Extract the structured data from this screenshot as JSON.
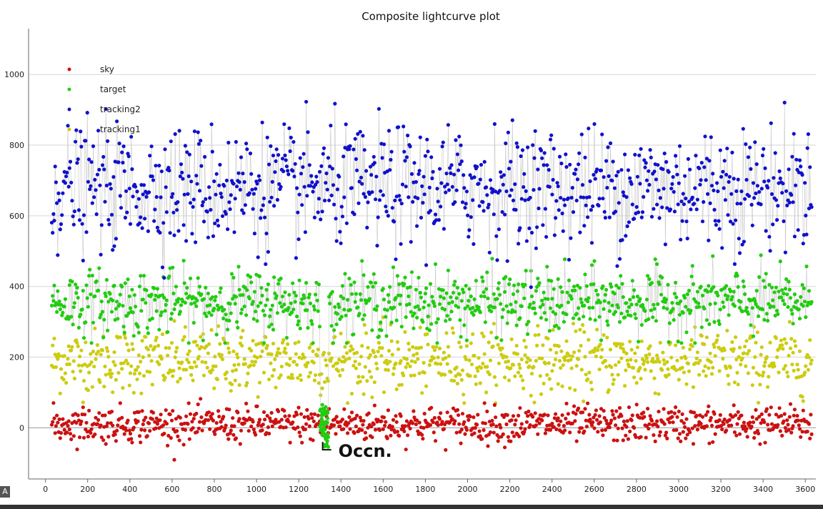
{
  "chart_data": {
    "type": "scatter",
    "title": "Composite lightcurve plot",
    "xlabel": "",
    "ylabel": "",
    "xlim": [
      -80,
      3650
    ],
    "ylim": [
      -145,
      1130
    ],
    "x_ticks": [
      "0",
      "200",
      "400",
      "600",
      "800",
      "1000",
      "1200",
      "1400",
      "1600",
      "1800",
      "2000",
      "2200",
      "2400",
      "2600",
      "2800",
      "3000",
      "3200",
      "3400",
      "3600"
    ],
    "y_ticks": [
      "0",
      "200",
      "400",
      "600",
      "800",
      "1000"
    ],
    "grid": "horizontal",
    "legend_position": "top-left",
    "x_range_points": [
      30,
      3630
    ],
    "series": [
      {
        "name": "sky",
        "color": "#cc1111",
        "mean": 10,
        "sd": 25,
        "min": -95,
        "max": 82
      },
      {
        "name": "target",
        "color": "#22cc11",
        "mean": 355,
        "sd": 45,
        "min": 240,
        "max": 555,
        "occultation": {
          "x_start": 1300,
          "x_end": 1340,
          "min": -55,
          "max": 65
        }
      },
      {
        "name": "tracking2",
        "color": "#1111cc",
        "mean": 680,
        "sd": 85,
        "min": 340,
        "max": 1065
      },
      {
        "name": "tracking1",
        "color": "#cccc11",
        "mean": 190,
        "sd": 45,
        "min": 70,
        "max": 330
      }
    ],
    "annotations": [
      {
        "text": "Occn.",
        "x": 1320,
        "y": -30
      }
    ]
  }
}
